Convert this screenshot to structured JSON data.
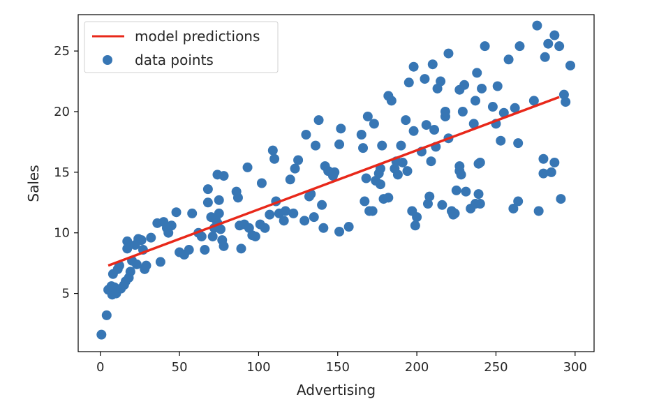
{
  "chart_data": {
    "type": "scatter",
    "title": "",
    "xlabel": "Advertising",
    "ylabel": "Sales",
    "xlim": [
      -14,
      312
    ],
    "ylim": [
      0.2,
      28.0
    ],
    "xticks": [
      0,
      50,
      100,
      150,
      200,
      250,
      300
    ],
    "yticks": [
      5,
      10,
      15,
      20,
      25
    ],
    "grid": false,
    "legend_position": "top-left",
    "series": [
      {
        "name": "model predictions",
        "kind": "line",
        "color": "#e8281a",
        "points": [
          [
            5,
            7.3
          ],
          [
            290,
            21.2
          ]
        ]
      },
      {
        "name": "data points",
        "kind": "scatter",
        "color": "#3776b4",
        "points": [
          [
            0.7,
            1.6
          ],
          [
            4,
            3.2
          ],
          [
            5,
            5.3
          ],
          [
            7,
            5.6
          ],
          [
            7.5,
            4.9
          ],
          [
            8,
            6.6
          ],
          [
            9,
            5.5
          ],
          [
            10,
            5.0
          ],
          [
            11,
            7.0
          ],
          [
            12,
            7.3
          ],
          [
            13,
            5.4
          ],
          [
            15,
            5.7
          ],
          [
            16,
            6.0
          ],
          [
            17,
            9.3
          ],
          [
            17,
            8.7
          ],
          [
            18,
            6.3
          ],
          [
            19,
            6.8
          ],
          [
            20,
            7.7
          ],
          [
            22,
            9.0
          ],
          [
            23,
            7.4
          ],
          [
            24,
            9.5
          ],
          [
            26,
            9.4
          ],
          [
            27,
            8.6
          ],
          [
            28,
            7.0
          ],
          [
            29,
            7.3
          ],
          [
            32,
            9.6
          ],
          [
            36,
            10.8
          ],
          [
            38,
            7.6
          ],
          [
            40,
            10.9
          ],
          [
            42,
            10.4
          ],
          [
            43,
            10.0
          ],
          [
            45,
            10.6
          ],
          [
            48,
            11.7
          ],
          [
            50,
            8.4
          ],
          [
            53,
            8.2
          ],
          [
            56,
            8.6
          ],
          [
            58,
            11.6
          ],
          [
            62,
            10.0
          ],
          [
            64,
            9.7
          ],
          [
            66,
            8.6
          ],
          [
            68,
            12.5
          ],
          [
            68,
            13.6
          ],
          [
            70,
            11.3
          ],
          [
            71,
            9.7
          ],
          [
            72,
            10.4
          ],
          [
            73,
            11.1
          ],
          [
            74,
            14.8
          ],
          [
            74,
            10.8
          ],
          [
            75,
            12.7
          ],
          [
            75,
            11.6
          ],
          [
            76,
            10.3
          ],
          [
            77,
            9.4
          ],
          [
            78,
            14.7
          ],
          [
            78,
            8.9
          ],
          [
            86,
            13.4
          ],
          [
            87,
            12.9
          ],
          [
            88,
            10.6
          ],
          [
            89,
            8.7
          ],
          [
            91,
            10.7
          ],
          [
            93,
            15.4
          ],
          [
            94,
            10.4
          ],
          [
            96,
            9.8
          ],
          [
            98,
            9.7
          ],
          [
            101,
            10.7
          ],
          [
            102,
            14.1
          ],
          [
            104,
            10.4
          ],
          [
            107,
            11.5
          ],
          [
            109,
            16.8
          ],
          [
            110,
            16.1
          ],
          [
            111,
            12.6
          ],
          [
            113,
            11.6
          ],
          [
            116,
            11.0
          ],
          [
            117,
            11.8
          ],
          [
            120,
            14.4
          ],
          [
            122,
            11.6
          ],
          [
            123,
            15.3
          ],
          [
            125,
            16.0
          ],
          [
            129,
            11.0
          ],
          [
            130,
            18.1
          ],
          [
            132,
            13.0
          ],
          [
            133,
            13.2
          ],
          [
            135,
            11.3
          ],
          [
            136,
            17.2
          ],
          [
            138,
            19.3
          ],
          [
            140,
            12.3
          ],
          [
            141,
            10.4
          ],
          [
            142,
            15.5
          ],
          [
            144,
            15.1
          ],
          [
            147,
            14.7
          ],
          [
            148,
            15.0
          ],
          [
            151,
            10.1
          ],
          [
            151,
            17.3
          ],
          [
            152,
            18.6
          ],
          [
            157,
            10.5
          ],
          [
            165,
            18.1
          ],
          [
            166,
            17.0
          ],
          [
            167,
            12.6
          ],
          [
            168,
            14.5
          ],
          [
            169,
            19.6
          ],
          [
            170,
            11.8
          ],
          [
            172,
            11.8
          ],
          [
            173,
            19.0
          ],
          [
            174,
            14.3
          ],
          [
            176,
            14.9
          ],
          [
            177,
            15.3
          ],
          [
            177,
            14.0
          ],
          [
            178,
            17.2
          ],
          [
            179,
            12.8
          ],
          [
            182,
            21.3
          ],
          [
            182,
            12.9
          ],
          [
            184,
            20.9
          ],
          [
            186,
            15.3
          ],
          [
            187,
            15.9
          ],
          [
            188,
            14.8
          ],
          [
            190,
            17.2
          ],
          [
            191,
            15.8
          ],
          [
            193,
            19.3
          ],
          [
            194,
            15.1
          ],
          [
            195,
            22.4
          ],
          [
            197,
            11.8
          ],
          [
            198,
            23.7
          ],
          [
            198,
            18.4
          ],
          [
            199,
            10.6
          ],
          [
            200,
            11.3
          ],
          [
            203,
            16.7
          ],
          [
            205,
            22.7
          ],
          [
            206,
            18.9
          ],
          [
            207,
            12.4
          ],
          [
            208,
            13.0
          ],
          [
            209,
            15.9
          ],
          [
            210,
            23.9
          ],
          [
            211,
            18.5
          ],
          [
            212,
            17.1
          ],
          [
            213,
            21.9
          ],
          [
            215,
            22.5
          ],
          [
            216,
            12.3
          ],
          [
            218,
            19.6
          ],
          [
            218,
            20.0
          ],
          [
            220,
            17.8
          ],
          [
            220,
            24.8
          ],
          [
            222,
            11.8
          ],
          [
            223,
            11.5
          ],
          [
            224,
            11.6
          ],
          [
            225,
            13.5
          ],
          [
            227,
            15.1
          ],
          [
            227,
            15.5
          ],
          [
            227,
            21.8
          ],
          [
            228,
            14.8
          ],
          [
            229,
            20.0
          ],
          [
            230,
            22.2
          ],
          [
            231,
            13.4
          ],
          [
            234,
            12.0
          ],
          [
            236,
            19.0
          ],
          [
            237,
            12.4
          ],
          [
            237,
            20.9
          ],
          [
            238,
            23.2
          ],
          [
            239,
            13.2
          ],
          [
            239,
            15.7
          ],
          [
            240,
            15.8
          ],
          [
            240,
            12.4
          ],
          [
            241,
            21.9
          ],
          [
            243,
            25.4
          ],
          [
            248,
            20.4
          ],
          [
            250,
            19.0
          ],
          [
            251,
            22.1
          ],
          [
            253,
            17.6
          ],
          [
            255,
            19.9
          ],
          [
            258,
            24.3
          ],
          [
            261,
            12.0
          ],
          [
            262,
            20.3
          ],
          [
            264,
            17.4
          ],
          [
            264,
            12.6
          ],
          [
            265,
            25.4
          ],
          [
            274,
            20.9
          ],
          [
            276,
            27.1
          ],
          [
            277,
            11.8
          ],
          [
            280,
            16.1
          ],
          [
            280,
            14.9
          ],
          [
            281,
            24.5
          ],
          [
            283,
            25.6
          ],
          [
            285,
            15.0
          ],
          [
            287,
            26.3
          ],
          [
            287,
            15.8
          ],
          [
            290,
            25.4
          ],
          [
            291,
            12.8
          ],
          [
            293,
            21.4
          ],
          [
            294,
            20.8
          ],
          [
            297,
            23.8
          ]
        ]
      }
    ]
  }
}
